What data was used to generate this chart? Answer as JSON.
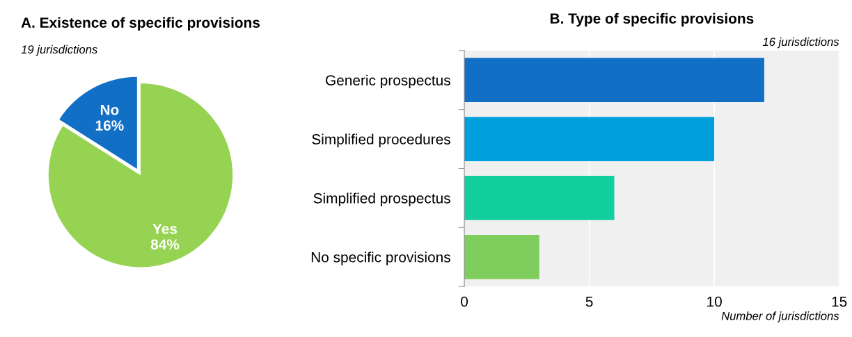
{
  "chart_data": [
    {
      "type": "pie",
      "title": "A. Existence of specific provisions",
      "annotations": [
        "19 jurisdictions"
      ],
      "categories": [
        "No",
        "Yes"
      ],
      "values": [
        16,
        84
      ],
      "value_labels": [
        "16%",
        "84%"
      ],
      "colors": [
        "#1170c6",
        "#96d352"
      ]
    },
    {
      "type": "bar",
      "orientation": "horizontal",
      "title": "B. Type of specific provisions",
      "annotations": [
        "16 jurisdictions"
      ],
      "xlabel": "Number of jurisdictions",
      "categories": [
        "Generic prospectus",
        "Simplified procedures",
        "Simplified prospectus",
        "No specific provisions"
      ],
      "values": [
        12,
        10,
        6,
        3
      ],
      "colors": [
        "#1170c6",
        "#00a0dc",
        "#13cf9d",
        "#7fcd5c"
      ],
      "xlim": [
        0,
        15
      ],
      "xticks": [
        0,
        5,
        10,
        15
      ],
      "grid": "x"
    }
  ]
}
